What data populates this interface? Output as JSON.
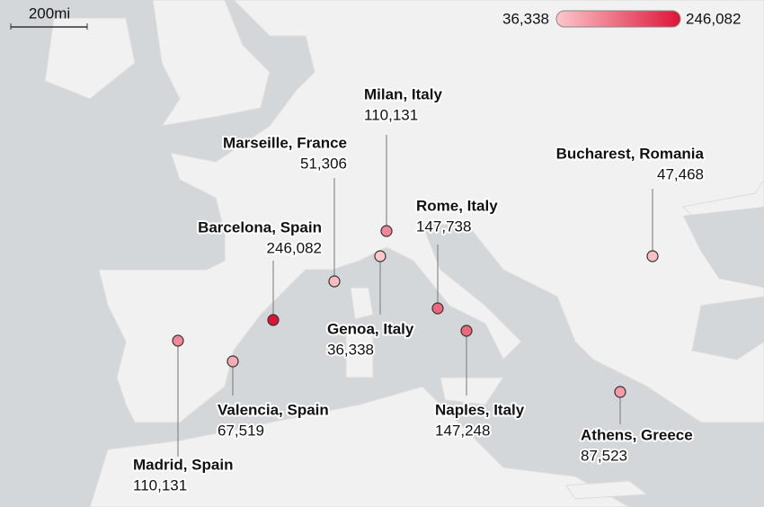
{
  "scale_bar": "200mi",
  "legend": {
    "min": {
      "value": 36338,
      "label": "36,338"
    },
    "max": {
      "value": 246082,
      "label": "246,082"
    },
    "colors": [
      "#fcc7cb",
      "#dc1437"
    ]
  },
  "points": [
    {
      "name": "Milan, Italy",
      "value": 110131,
      "label": "110,131"
    },
    {
      "name": "Marseille, France",
      "value": 51306,
      "label": "51,306"
    },
    {
      "name": "Barcelona, Spain",
      "value": 246082,
      "label": "246,082"
    },
    {
      "name": "Rome, Italy",
      "value": 147738,
      "label": "147,738"
    },
    {
      "name": "Genoa, Italy",
      "value": 36338,
      "label": "36,338"
    },
    {
      "name": "Naples, Italy",
      "value": 147248,
      "label": "147,248"
    },
    {
      "name": "Bucharest, Romania",
      "value": 47468,
      "label": "47,468"
    },
    {
      "name": "Valencia, Spain",
      "value": 67519,
      "label": "67,519"
    },
    {
      "name": "Madrid, Spain",
      "value": 110131,
      "label": "110,131"
    },
    {
      "name": "Athens, Greece",
      "value": 87523,
      "label": "87,523"
    }
  ]
}
